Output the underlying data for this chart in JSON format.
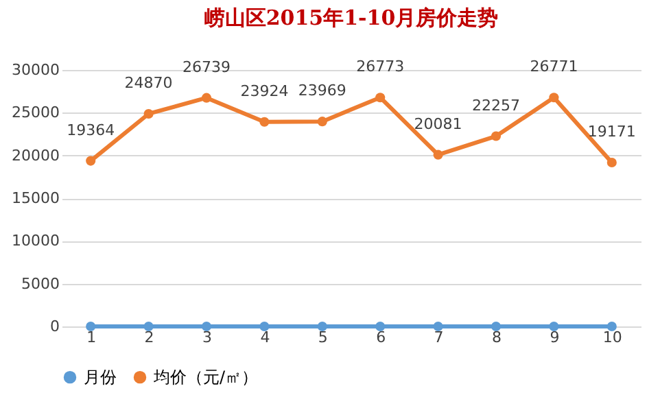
{
  "chart_data": {
    "type": "line",
    "title": "崂山区2015年1-10月房价走势",
    "categories": [
      "1",
      "2",
      "3",
      "4",
      "5",
      "6",
      "7",
      "8",
      "9",
      "10"
    ],
    "series": [
      {
        "name": "月份",
        "color": "#5b9bd5",
        "values": [
          0,
          0,
          0,
          0,
          0,
          0,
          0,
          0,
          0,
          0
        ]
      },
      {
        "name": "均价（元/㎡）",
        "color": "#ed7d31",
        "values": [
          19364,
          24870,
          26739,
          23924,
          23969,
          26773,
          20081,
          22257,
          26771,
          19171
        ],
        "value_labels": [
          "19364",
          "24870",
          "26739",
          "23924",
          "23969",
          "26773",
          "20081",
          "22257",
          "26771",
          "19171"
        ]
      }
    ],
    "ylim": [
      0,
      30000
    ],
    "yticks": [
      0,
      5000,
      10000,
      15000,
      20000,
      25000,
      30000
    ],
    "grid": "y",
    "legend": "bottom",
    "marker": "circle",
    "line_style": "solid"
  }
}
